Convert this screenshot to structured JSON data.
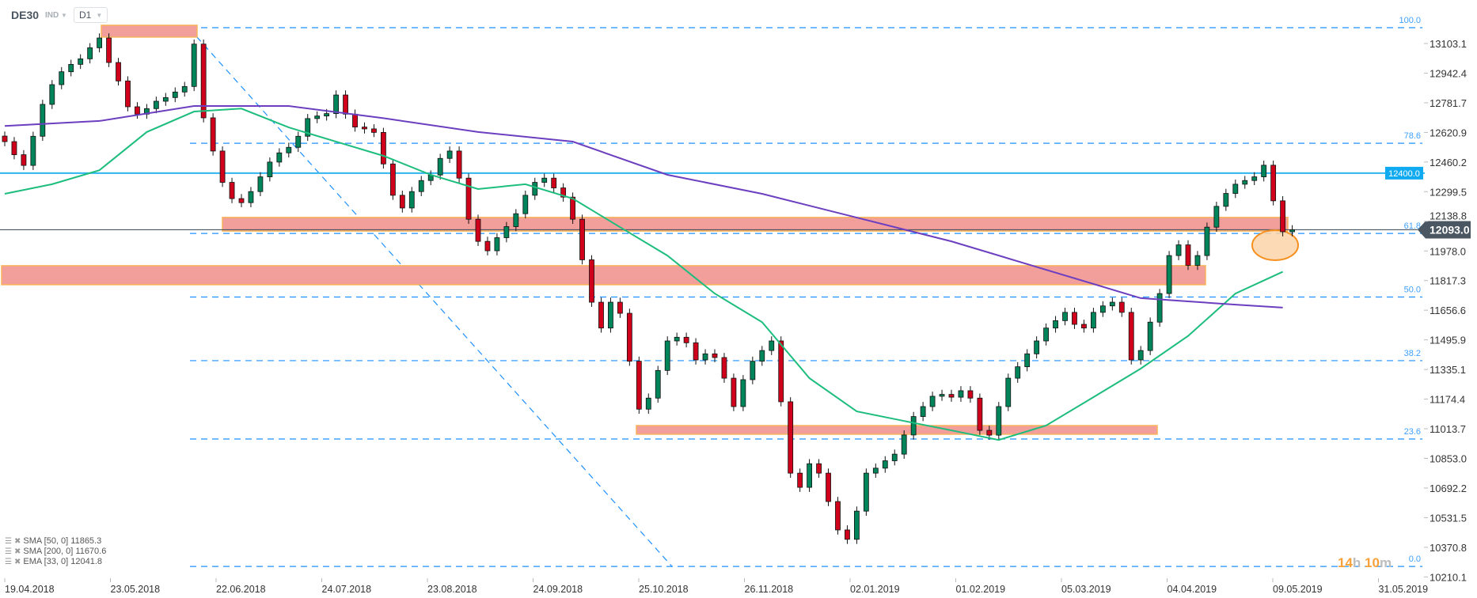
{
  "header": {
    "symbol": "DE30",
    "market": "IND",
    "timeframe": "D1"
  },
  "legend": [
    {
      "label": "SMA [50, 0] 11865.3"
    },
    {
      "label": "SMA [200, 0] 11670.6"
    },
    {
      "label": "EMA [33, 0] 12041.8"
    }
  ],
  "countdown": {
    "hours": "14",
    "h": "h",
    "minutes": "10",
    "m": "m"
  },
  "colors": {
    "up": "#00845a",
    "down": "#d0021b",
    "sma50": "#1dbd7e",
    "sma200": "#6b3fbf",
    "fib": "#1e90ff",
    "level": "#2fb4f0",
    "zone_fill": "#f29e9a",
    "zone_border": "#f7b35a",
    "ellipse": "#fbd3a8",
    "last_price": "#4a5661"
  },
  "chart_data": {
    "type": "candlestick",
    "yaxis_ticks": [
      "13103.1",
      "12942.4",
      "12781.7",
      "12620.9",
      "12460.2",
      "12299.5",
      "12138.8",
      "11978.0",
      "11817.3",
      "11656.6",
      "11495.9",
      "11335.1",
      "11174.4",
      "11013.7",
      "10853.0",
      "10692.2",
      "10531.5",
      "10370.8",
      "10210.1"
    ],
    "xaxis_ticks": [
      "19.04.2018",
      "23.05.2018",
      "22.06.2018",
      "24.07.2018",
      "23.08.2018",
      "24.09.2018",
      "25.10.2018",
      "26.11.2018",
      "02.01.2019",
      "01.02.2019",
      "05.03.2019",
      "04.04.2019",
      "09.05.2019",
      "31.05.2019"
    ],
    "closes": [
      12571,
      12500,
      12442,
      12600,
      12773,
      12880,
      12950,
      12990,
      13020,
      13080,
      13133,
      13000,
      12900,
      12760,
      12720,
      12750,
      12790,
      12810,
      12840,
      12870,
      13100,
      12700,
      12520,
      12350,
      12262,
      12240,
      12300,
      12380,
      12460,
      12510,
      12540,
      12600,
      12696,
      12710,
      12723,
      12824,
      12720,
      12650,
      12640,
      12621,
      12450,
      12280,
      12211,
      12300,
      12360,
      12390,
      12480,
      12520,
      12373,
      12150,
      12030,
      11979,
      12050,
      12110,
      12180,
      12280,
      12350,
      12373,
      12320,
      12270,
      12150,
      11930,
      11700,
      11560,
      11700,
      11640,
      11380,
      11120,
      11180,
      11330,
      11490,
      11510,
      11480,
      11387,
      11420,
      11400,
      11288,
      11134,
      11280,
      11380,
      11438,
      11490,
      11160,
      10773,
      10696,
      10824,
      10773,
      10619,
      10465,
      10414,
      10567,
      10773,
      10800,
      10840,
      10876,
      10980,
      11080,
      11134,
      11190,
      11200,
      11185,
      11220,
      11180,
      11005,
      10979,
      11134,
      11288,
      11350,
      11420,
      11490,
      11560,
      11600,
      11645,
      11580,
      11560,
      11645,
      11680,
      11700,
      11645,
      11387,
      11438,
      11592,
      11747,
      11953,
      12011,
      11900,
      11953,
      12107,
      12220,
      12290,
      12340,
      12360,
      12380,
      12443,
      12250,
      12082,
      12093
    ],
    "series": [
      {
        "name": "SMA [50, 0]",
        "points": [
          [
            0,
            12288
          ],
          [
            5,
            12340
          ],
          [
            10,
            12416
          ],
          [
            15,
            12623
          ],
          [
            20,
            12734
          ],
          [
            25,
            12750
          ],
          [
            30,
            12648
          ],
          [
            35,
            12571
          ],
          [
            40,
            12494
          ],
          [
            45,
            12391
          ],
          [
            50,
            12314
          ],
          [
            55,
            12340
          ],
          [
            60,
            12262
          ],
          [
            65,
            12107
          ],
          [
            70,
            11953
          ],
          [
            75,
            11747
          ],
          [
            80,
            11592
          ],
          [
            85,
            11288
          ],
          [
            90,
            11108
          ],
          [
            95,
            11056
          ],
          [
            100,
            11005
          ],
          [
            105,
            10953
          ],
          [
            110,
            11031
          ],
          [
            115,
            11185
          ],
          [
            120,
            11340
          ],
          [
            125,
            11517
          ],
          [
            130,
            11747
          ],
          [
            135,
            11865.3
          ]
        ]
      },
      {
        "name": "SMA [200, 0]",
        "points": [
          [
            0,
            12656
          ],
          [
            10,
            12683
          ],
          [
            20,
            12764
          ],
          [
            30,
            12764
          ],
          [
            40,
            12698
          ],
          [
            50,
            12623
          ],
          [
            60,
            12571
          ],
          [
            70,
            12391
          ],
          [
            80,
            12288
          ],
          [
            90,
            12159
          ],
          [
            100,
            12030
          ],
          [
            110,
            11876
          ],
          [
            120,
            11722
          ],
          [
            130,
            11687
          ],
          [
            135,
            11670.6
          ]
        ]
      }
    ],
    "fibonacci": [
      {
        "label": "100.0",
        "value": 13189
      },
      {
        "label": "78.6",
        "value": 12562
      },
      {
        "label": "61.8",
        "value": 12073
      },
      {
        "label": "50.0",
        "value": 11728
      },
      {
        "label": "38.2",
        "value": 11383
      },
      {
        "label": "23.6",
        "value": 10958
      },
      {
        "label": "0.0",
        "value": 10267
      }
    ],
    "horizontal_level": {
      "label": "12400.0",
      "value": 12400
    },
    "last_price": {
      "label": "12093.0",
      "value": 12093
    },
    "zones": [
      {
        "top": 13202,
        "bottom": 13138
      },
      {
        "top": 12160,
        "bottom": 12086
      },
      {
        "top": 11898,
        "bottom": 11795
      },
      {
        "top": 11031,
        "bottom": 10984
      }
    ],
    "trendline": {
      "from": 13185,
      "to": 10267
    }
  }
}
